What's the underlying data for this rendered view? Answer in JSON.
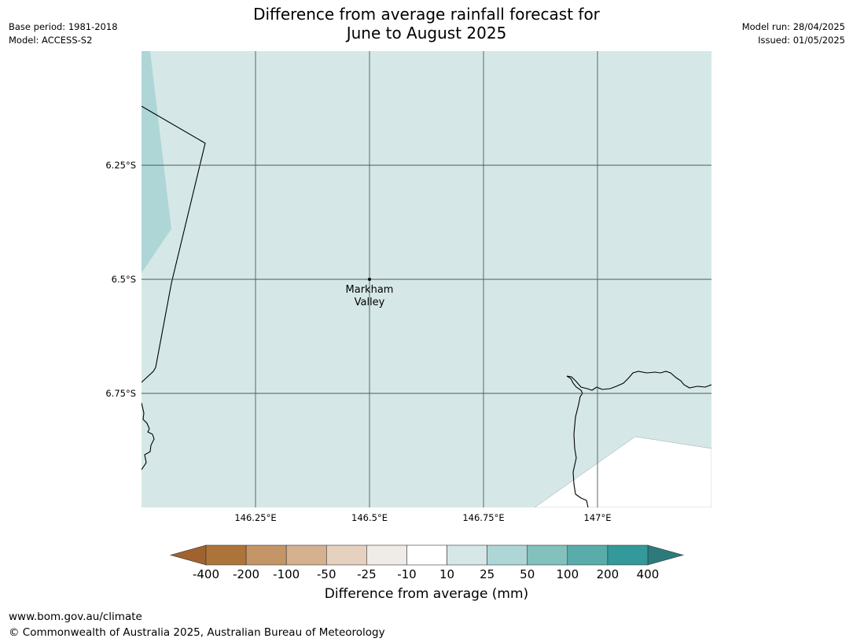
{
  "title_lines": [
    "Difference from average rainfall forecast for",
    "June to August 2025"
  ],
  "meta_left": {
    "base_period": "Base period: 1981-2018",
    "model": "Model: ACCESS-S2"
  },
  "meta_right": {
    "model_run": "Model run: 28/04/2025",
    "issued": "Issued: 01/05/2025"
  },
  "map": {
    "lon_range": [
      146.0,
      147.25
    ],
    "lat_range": [
      -6.0,
      -7.0
    ],
    "lat_gridlines": [
      -6.25,
      -6.5,
      -6.75
    ],
    "lon_gridlines": [
      146.25,
      146.5,
      146.75,
      147.0
    ],
    "lat_labels": [
      "6.25°S",
      "6.5°S",
      "6.75°S"
    ],
    "lon_labels": [
      "146.25°E",
      "146.5°E",
      "146.75°E",
      "147°E"
    ],
    "place": {
      "name_line1": "Markham",
      "name_line2": "Valley",
      "lon": 146.5,
      "lat": -6.5
    },
    "background_category": "10 to 25",
    "fill_color": "#d5e8e7",
    "west_strip_category": "25 to 50",
    "west_strip_color": "#afd6d6"
  },
  "colorbar": {
    "label": "Difference from average (mm)",
    "tick_labels": [
      "-400",
      "-200",
      "-100",
      "-50",
      "-25",
      "-10",
      "10",
      "25",
      "50",
      "100",
      "200",
      "400"
    ],
    "colors": [
      "#ad7439",
      "#c49567",
      "#d5b18f",
      "#e5d1bd",
      "#efebe7",
      "#ffffff",
      "#d5e8e7",
      "#afd6d6",
      "#83c1bd",
      "#5aacab",
      "#33999a"
    ],
    "extend_low_color": "#a0622f",
    "extend_high_color": "#2c7b7a"
  },
  "footer": {
    "url": "www.bom.gov.au/climate",
    "copyright": "© Commonwealth of Australia 2025, Australian Bureau of Meteorology"
  }
}
